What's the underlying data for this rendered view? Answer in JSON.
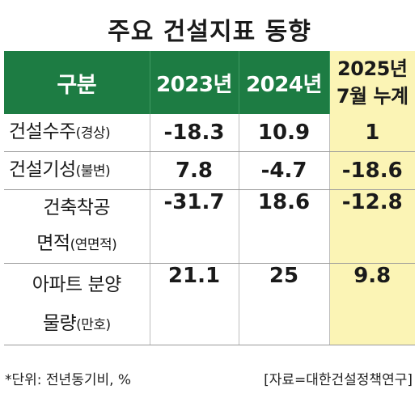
{
  "title": "주요 건설지표 동향",
  "table": {
    "headers": [
      "구분",
      "2023년",
      "2024년",
      "2025년",
      "7월 누계"
    ],
    "rows": [
      {
        "label": "건설수주",
        "label_paren": "(경상)",
        "v2023": "-18.3",
        "v2024": "10.9",
        "v2025": "1"
      },
      {
        "label": "건설기성",
        "label_paren": "(불변)",
        "v2023": "7.8",
        "v2024": "-4.7",
        "v2025": "-18.6"
      },
      {
        "label_line1": "건축착공",
        "label_line2": "면적",
        "label_paren": "(연면적)",
        "v2023": "-31.7",
        "v2024": "18.6",
        "v2025": "-12.8"
      },
      {
        "label_line1": "아파트 분양",
        "label_line2": "물량",
        "label_paren": "(만호)",
        "v2023": "21.1",
        "v2024": "25",
        "v2025": "9.8"
      }
    ]
  },
  "footer": {
    "unit_note": "*단위: 전년동기비, %",
    "source": "[자료=대한건설정책연구]"
  },
  "colors": {
    "header_green": "#1d7c43",
    "highlight_yellow": "#fbf4b5"
  }
}
